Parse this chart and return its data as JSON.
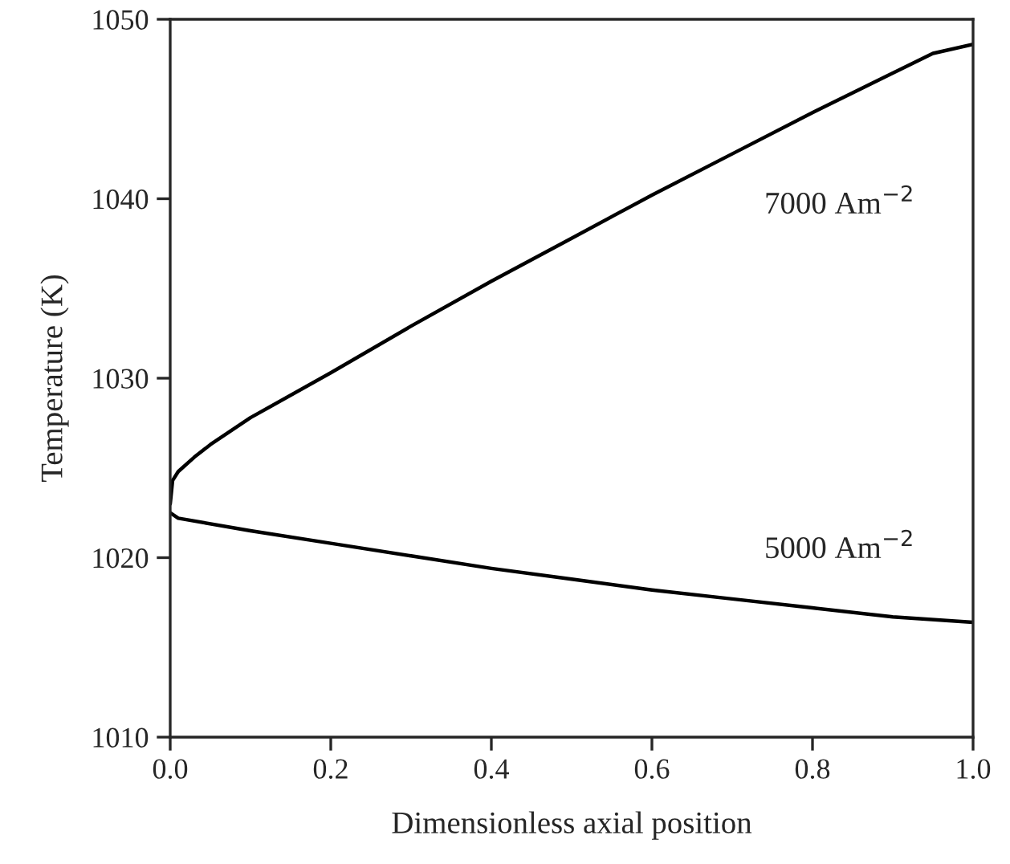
{
  "chart_data": {
    "type": "line",
    "xlabel": "Dimensionless axial position",
    "ylabel": "Temperature (K)",
    "xlim": [
      0,
      1
    ],
    "ylim": [
      1010,
      1050
    ],
    "xticks": [
      {
        "value": 0,
        "label": "0.0"
      },
      {
        "value": 0.2,
        "label": "0.2"
      },
      {
        "value": 0.4,
        "label": "0.4"
      },
      {
        "value": 0.6,
        "label": "0.6"
      },
      {
        "value": 0.8,
        "label": "0.8"
      },
      {
        "value": 1,
        "label": "1.0"
      }
    ],
    "yticks": [
      1010,
      1020,
      1030,
      1040,
      1050
    ],
    "grid": false,
    "marker": "none",
    "line_style": "solid",
    "series": [
      {
        "color": "#000000",
        "x": [
          0,
          0.003,
          0.01,
          0.03,
          0.05,
          0.1,
          0.2,
          0.3,
          0.4,
          0.5,
          0.6,
          0.7,
          0.8,
          0.9,
          0.95,
          1.0
        ],
        "values": [
          1023,
          1024.3,
          1024.8,
          1025.6,
          1026.3,
          1027.8,
          1030.3,
          1032.9,
          1035.4,
          1037.8,
          1040.2,
          1042.5,
          1044.8,
          1047,
          1048.1,
          1048.6
        ]
      },
      {
        "color": "#000000",
        "x": [
          0,
          0.01,
          0.1,
          0.2,
          0.3,
          0.4,
          0.5,
          0.6,
          0.7,
          0.8,
          0.9,
          1.0
        ],
        "values": [
          1022.5,
          1022.2,
          1021.5,
          1020.8,
          1020.1,
          1019.4,
          1018.8,
          1018.2,
          1017.7,
          1017.2,
          1016.7,
          1016.4
        ]
      }
    ],
    "annotations": [
      "7000 Am$^{−2}$",
      "5000 Am$^{−2}$"
    ]
  }
}
